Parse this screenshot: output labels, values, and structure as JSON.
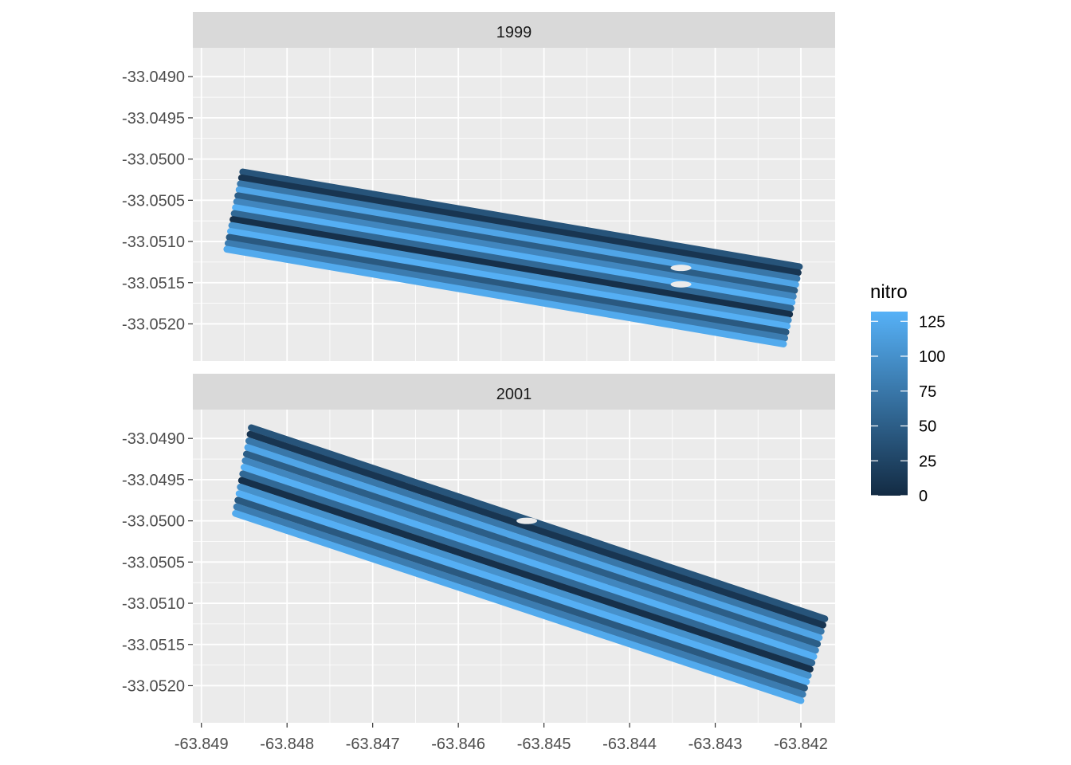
{
  "chart_data": {
    "type": "scatter",
    "facet_by": "year",
    "panels": [
      {
        "strip_label": "1999",
        "field_corners_lon_lat": [
          [
            -63.84851,
            -33.05012
          ],
          [
            -63.84201,
            -33.05127
          ],
          [
            -63.84221,
            -33.05228
          ],
          [
            -63.84871,
            -33.05113
          ]
        ],
        "rows": 14,
        "gaps_lon_lat": [
          [
            -63.8434,
            -33.05132
          ],
          [
            -63.8434,
            -33.05152
          ]
        ]
      },
      {
        "strip_label": "2001",
        "field_corners_lon_lat": [
          [
            -63.84841,
            -33.04883
          ],
          [
            -63.84171,
            -33.05115
          ],
          [
            -63.84201,
            -33.05222
          ],
          [
            -63.84861,
            -33.04995
          ]
        ],
        "rows": 14,
        "gaps_lon_lat": [
          [
            -63.8452,
            -33.05
          ]
        ]
      }
    ],
    "row_nitro_values": [
      40,
      10,
      75,
      120,
      50,
      90,
      130,
      60,
      5,
      100,
      130,
      45,
      80,
      125
    ],
    "x_ticks": [
      "-63.849",
      "-63.848",
      "-63.847",
      "-63.846",
      "-63.845",
      "-63.844",
      "-63.843",
      "-63.842"
    ],
    "x_tick_values": [
      -63.849,
      -63.848,
      -63.847,
      -63.846,
      -63.845,
      -63.844,
      -63.843,
      -63.842
    ],
    "xlim": [
      -63.8491,
      -63.8416
    ],
    "y_ticks": [
      "-33.0490",
      "-33.0495",
      "-33.0500",
      "-33.0505",
      "-33.0510",
      "-33.0515",
      "-33.0520"
    ],
    "y_tick_values": [
      -33.049,
      -33.0495,
      -33.05,
      -33.0505,
      -33.051,
      -33.0515,
      -33.052
    ],
    "ylim": [
      -33.05245,
      -33.04865
    ],
    "grid": true,
    "legend": {
      "title": "nitro",
      "position": "right",
      "labels": [
        "125",
        "100",
        "75",
        "50",
        "25",
        "0"
      ],
      "values": [
        125,
        100,
        75,
        50,
        25,
        0
      ],
      "range": [
        0,
        132
      ],
      "color_low": "#132B43",
      "color_high": "#56B1F7"
    }
  }
}
